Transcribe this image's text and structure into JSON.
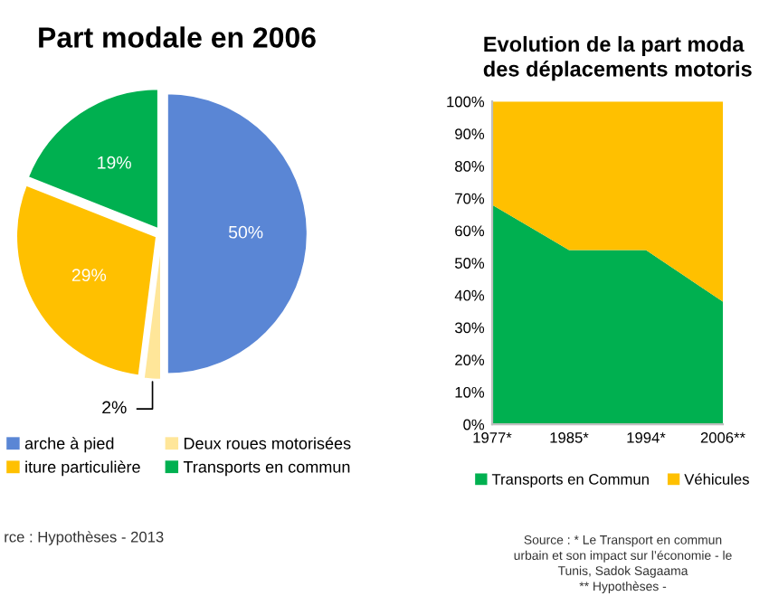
{
  "chart_data": [
    {
      "type": "pie",
      "title": "Part modale en 2006",
      "categories": [
        "arche à pied",
        "Deux roues motorisées",
        "iture particulière",
        "Transports en commun"
      ],
      "values": [
        50,
        2,
        29,
        19
      ],
      "colors": [
        "#5a86d5",
        "#ffe699",
        "#ffc000",
        "#00b050"
      ],
      "value_labels": [
        "50%",
        "2%",
        "29%",
        "19%"
      ],
      "legend": "bottom",
      "annotations": [
        "rce : Hypothèses - 2013"
      ]
    },
    {
      "type": "area",
      "title": "Evolution de la part moda\ndes déplacements motoris",
      "stacked": true,
      "categories": [
        "1977*",
        "1985*",
        "1994*",
        "2006**"
      ],
      "series": [
        {
          "name": "Transports en Commun",
          "color": "#00b050",
          "values": [
            68,
            54,
            54,
            38
          ]
        },
        {
          "name": "Véhicules",
          "color": "#ffc000",
          "values": [
            32,
            46,
            46,
            62
          ]
        }
      ],
      "ylim": [
        0,
        100
      ],
      "yticks": [
        {
          "value": 0,
          "label": "0%"
        },
        {
          "value": 10,
          "label": "10%"
        },
        {
          "value": 20,
          "label": "20%"
        },
        {
          "value": 30,
          "label": "30%"
        },
        {
          "value": 40,
          "label": "40%"
        },
        {
          "value": 50,
          "label": "50%"
        },
        {
          "value": 60,
          "label": "60%"
        },
        {
          "value": 70,
          "label": "70%"
        },
        {
          "value": 80,
          "label": "80%"
        },
        {
          "value": 90,
          "label": "90%"
        },
        {
          "value": 100,
          "label": "100%"
        }
      ],
      "legend": "bottom",
      "grid": false,
      "annotations": [
        "Source : * Le Transport en commun\nurbain et son impact sur l’économie - le\nTunis, Sadok Sagaama\n** Hypothèses -"
      ]
    }
  ]
}
